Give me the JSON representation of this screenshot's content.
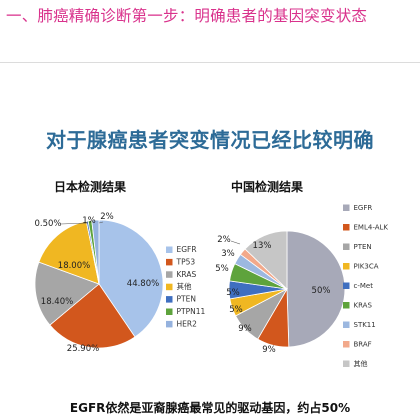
{
  "header": {
    "title": "一、肺癌精确诊断第一步：明确患者的基因突变状态"
  },
  "slide": {
    "title": "对于腺癌患者突变情况已经比较明确",
    "footer": "EGFR依然是亚裔腺癌最常见的驱动基因，约占50%"
  },
  "chart_data": [
    {
      "type": "pie",
      "title": "日本检测结果",
      "slices": [
        {
          "label": "EGFR",
          "value": 44.8,
          "text": "44.80%",
          "color": "#a7c3ea"
        },
        {
          "label": "TP53",
          "value": 25.9,
          "text": "25.90%",
          "color": "#d2571d"
        },
        {
          "label": "KRAS",
          "value": 18.4,
          "text": "18.40%",
          "color": "#a6a6a6"
        },
        {
          "label": "其他",
          "value": 18.0,
          "text": "18.00%",
          "color": "#f0b722"
        },
        {
          "label": "PTEN",
          "value": 0.5,
          "text": "0.50%",
          "color": "#3f6fc0"
        },
        {
          "label": "PTPN11",
          "value": 1,
          "text": "1%",
          "color": "#5ea33c"
        },
        {
          "label": "HER2",
          "value": 2,
          "text": "2%",
          "color": "#95b2de"
        }
      ]
    },
    {
      "type": "pie",
      "title": "中国检测结果",
      "slices": [
        {
          "label": "EGFR",
          "value": 50,
          "text": "50%",
          "color": "#a7a9b8"
        },
        {
          "label": "EML4-ALK",
          "value": 9,
          "text": "9%",
          "color": "#d2571d"
        },
        {
          "label": "PTEN",
          "value": 9,
          "text": "9%",
          "color": "#a6a6a6"
        },
        {
          "label": "PIK3CA",
          "value": 5,
          "text": "5%",
          "color": "#f0b722"
        },
        {
          "label": "c-Met",
          "value": 5,
          "text": "5%",
          "color": "#3f6fc0"
        },
        {
          "label": "KRAS",
          "value": 5,
          "text": "5%",
          "color": "#5ea33c"
        },
        {
          "label": "STK11",
          "value": 3,
          "text": "3%",
          "color": "#9cb8e0"
        },
        {
          "label": "BRAF",
          "value": 2,
          "text": "2%",
          "color": "#f2a98b"
        },
        {
          "label": "其他",
          "value": 13,
          "text": "13%",
          "color": "#c6c6c6"
        }
      ]
    }
  ]
}
